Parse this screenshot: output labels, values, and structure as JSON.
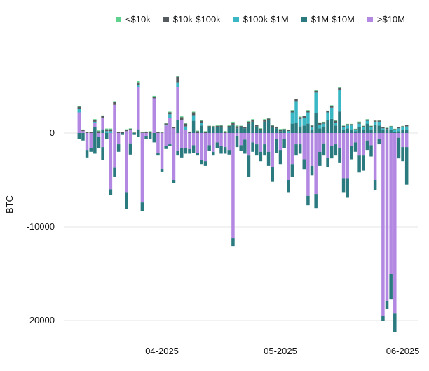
{
  "legend_title": "",
  "chart_data": {
    "type": "bar",
    "stacked": true,
    "title": "",
    "xlabel": "",
    "ylabel": "BTC",
    "ylim": [
      -20500,
      6500
    ],
    "y_ticks": [
      0,
      -10000,
      -20000
    ],
    "x_tick_labels": [
      {
        "label": "04-2025",
        "index": 21
      },
      {
        "label": "05-2025",
        "index": 51
      },
      {
        "label": "06-2025",
        "index": 82
      }
    ],
    "grid": true,
    "legend_position": "top-right",
    "series": [
      {
        "name": "<$10k",
        "color": "#5fd38d"
      },
      {
        "name": "$10k-$100k",
        "color": "#555b5e"
      },
      {
        "name": "$100k-$1M",
        "color": "#39b7c4"
      },
      {
        "name": "$1M-$10M",
        "color": "#2a7a7f"
      },
      {
        "name": ">$10M",
        "color": "#b388e2"
      }
    ],
    "positive": [
      [
        100,
        200,
        400,
        0,
        2200
      ],
      [
        60,
        120,
        0,
        0,
        200
      ],
      [
        40,
        80,
        0,
        0,
        0
      ],
      [
        40,
        100,
        0,
        0,
        0
      ],
      [
        80,
        200,
        100,
        600,
        500
      ],
      [
        80,
        200,
        0,
        0,
        0
      ],
      [
        80,
        200,
        0,
        400,
        1200
      ],
      [
        80,
        200,
        200,
        0,
        0
      ],
      [
        80,
        200,
        200,
        0,
        0
      ],
      [
        100,
        300,
        0,
        0,
        3000
      ],
      [
        40,
        100,
        0,
        0,
        0
      ],
      [
        40,
        80,
        0,
        0,
        0
      ],
      [
        60,
        140,
        0,
        0,
        200
      ],
      [
        60,
        140,
        0,
        0,
        300
      ],
      [
        20,
        40,
        0,
        0,
        0
      ],
      [
        120,
        300,
        200,
        400,
        4500
      ],
      [
        40,
        60,
        0,
        0,
        0
      ],
      [
        40,
        120,
        0,
        0,
        0
      ],
      [
        60,
        140,
        0,
        0,
        0
      ],
      [
        80,
        180,
        0,
        0,
        3700
      ],
      [
        40,
        100,
        0,
        0,
        0
      ],
      [
        40,
        60,
        0,
        0,
        0
      ],
      [
        40,
        120,
        100,
        0,
        800
      ],
      [
        80,
        200,
        400,
        0,
        1600
      ],
      [
        40,
        120,
        0,
        0,
        500
      ],
      [
        100,
        600,
        500,
        1400,
        3500
      ],
      [
        80,
        300,
        0,
        0,
        1400
      ],
      [
        80,
        300,
        400,
        0,
        300
      ],
      [
        40,
        120,
        0,
        0,
        0
      ],
      [
        80,
        300,
        600,
        1300,
        0
      ],
      [
        60,
        200,
        0,
        0,
        0
      ],
      [
        80,
        200,
        300,
        800,
        0
      ],
      [
        60,
        140,
        0,
        0,
        0
      ],
      [
        40,
        140,
        0,
        600,
        0
      ],
      [
        40,
        120,
        0,
        600,
        0
      ],
      [
        60,
        160,
        0,
        600,
        0
      ],
      [
        60,
        180,
        0,
        600,
        0
      ],
      [
        60,
        160,
        0,
        0,
        0
      ],
      [
        60,
        160,
        0,
        600,
        0
      ],
      [
        80,
        220,
        0,
        900,
        0
      ],
      [
        80,
        220,
        0,
        500,
        0
      ],
      [
        40,
        140,
        0,
        600,
        0
      ],
      [
        40,
        120,
        0,
        500,
        0
      ],
      [
        80,
        200,
        0,
        1000,
        0
      ],
      [
        80,
        200,
        0,
        1200,
        0
      ],
      [
        40,
        140,
        0,
        700,
        0
      ],
      [
        60,
        160,
        0,
        300,
        0
      ],
      [
        80,
        200,
        0,
        1200,
        0
      ],
      [
        40,
        140,
        0,
        1400,
        0
      ],
      [
        80,
        200,
        0,
        600,
        0
      ],
      [
        40,
        140,
        0,
        500,
        0
      ],
      [
        60,
        180,
        0,
        200,
        0
      ],
      [
        40,
        120,
        0,
        300,
        0
      ],
      [
        40,
        140,
        200,
        0,
        0
      ],
      [
        60,
        200,
        1200,
        1000,
        0
      ],
      [
        60,
        200,
        2300,
        1100,
        0
      ],
      [
        60,
        200,
        800,
        700,
        0
      ],
      [
        60,
        200,
        800,
        800,
        0
      ],
      [
        60,
        200,
        1200,
        1000,
        0
      ],
      [
        60,
        200,
        200,
        400,
        0
      ],
      [
        80,
        200,
        2200,
        2100,
        0
      ],
      [
        60,
        180,
        400,
        500,
        0
      ],
      [
        40,
        160,
        300,
        700,
        0
      ],
      [
        40,
        160,
        800,
        1400,
        0
      ],
      [
        60,
        200,
        1200,
        1500,
        0
      ],
      [
        60,
        200,
        300,
        800,
        0
      ],
      [
        60,
        200,
        2300,
        2300,
        0
      ],
      [
        40,
        160,
        200,
        400,
        0
      ],
      [
        40,
        140,
        300,
        500,
        0
      ],
      [
        40,
        140,
        400,
        400,
        0
      ],
      [
        40,
        120,
        100,
        200,
        0
      ],
      [
        60,
        160,
        400,
        600,
        0
      ],
      [
        40,
        140,
        200,
        400,
        0
      ],
      [
        40,
        140,
        300,
        1000,
        0
      ],
      [
        40,
        140,
        200,
        400,
        0
      ],
      [
        40,
        120,
        300,
        900,
        0
      ],
      [
        40,
        120,
        400,
        800,
        0
      ],
      [
        40,
        120,
        200,
        300,
        0
      ],
      [
        40,
        140,
        100,
        300,
        0
      ],
      [
        40,
        120,
        300,
        300,
        0
      ],
      [
        40,
        120,
        200,
        100,
        0
      ],
      [
        40,
        120,
        300,
        200,
        0
      ],
      [
        40,
        120,
        300,
        300,
        0
      ],
      [
        40,
        140,
        300,
        400,
        0
      ]
    ],
    "negative": [
      [
        0,
        0,
        0,
        -600,
        0
      ],
      [
        0,
        0,
        0,
        -800,
        0
      ],
      [
        0,
        0,
        0,
        -800,
        -1800
      ],
      [
        0,
        0,
        0,
        -400,
        -1600
      ],
      [
        0,
        0,
        0,
        -2200,
        0
      ],
      [
        0,
        0,
        0,
        -1200,
        -400
      ],
      [
        0,
        0,
        0,
        -1400,
        -1500
      ],
      [
        0,
        0,
        0,
        -600,
        0
      ],
      [
        0,
        0,
        0,
        -600,
        -6000
      ],
      [
        0,
        0,
        0,
        -1000,
        -3700
      ],
      [
        0,
        0,
        0,
        -800,
        -1200
      ],
      [
        0,
        0,
        0,
        -200,
        0
      ],
      [
        0,
        0,
        0,
        -1800,
        -6300
      ],
      [
        0,
        0,
        0,
        -1200,
        -1100
      ],
      [
        0,
        0,
        0,
        -200,
        0
      ],
      [
        0,
        0,
        0,
        -400,
        0
      ],
      [
        0,
        0,
        0,
        -900,
        -7400
      ],
      [
        0,
        0,
        0,
        -300,
        -300
      ],
      [
        0,
        0,
        0,
        -600,
        0
      ],
      [
        0,
        0,
        0,
        -1000,
        0
      ],
      [
        0,
        0,
        0,
        -300,
        -2100
      ],
      [
        0,
        0,
        0,
        -300,
        -3800
      ],
      [
        0,
        0,
        0,
        -300,
        -1400
      ],
      [
        0,
        0,
        0,
        -200,
        -1200
      ],
      [
        0,
        0,
        0,
        -300,
        -5000
      ],
      [
        0,
        0,
        0,
        -500,
        -1900
      ],
      [
        0,
        0,
        0,
        -1000,
        -1600
      ],
      [
        0,
        0,
        0,
        -600,
        -1600
      ],
      [
        0,
        0,
        0,
        -500,
        -1700
      ],
      [
        0,
        0,
        0,
        -800,
        -1300
      ],
      [
        0,
        0,
        0,
        -300,
        -2100
      ],
      [
        0,
        0,
        0,
        -400,
        -2900
      ],
      [
        0,
        0,
        0,
        -500,
        -3000
      ],
      [
        0,
        0,
        0,
        -600,
        -1300
      ],
      [
        0,
        0,
        0,
        -400,
        -2000
      ],
      [
        0,
        0,
        0,
        -600,
        -1000
      ],
      [
        0,
        0,
        0,
        -800,
        -1400
      ],
      [
        0,
        0,
        0,
        -700,
        -1500
      ],
      [
        0,
        0,
        0,
        -500,
        -1800
      ],
      [
        0,
        0,
        0,
        -900,
        -11200
      ],
      [
        0,
        0,
        0,
        -1200,
        -300
      ],
      [
        0,
        0,
        0,
        -600,
        -1300
      ],
      [
        0,
        0,
        0,
        -1500,
        -700
      ],
      [
        0,
        0,
        0,
        -2300,
        -2400
      ],
      [
        0,
        0,
        0,
        -1000,
        -1000
      ],
      [
        0,
        0,
        0,
        -1200,
        -1200
      ],
      [
        0,
        0,
        0,
        -1000,
        -2000
      ],
      [
        0,
        0,
        0,
        -1200,
        -1200
      ],
      [
        0,
        0,
        0,
        -1500,
        -2000
      ],
      [
        0,
        0,
        0,
        -1600,
        -3600
      ],
      [
        0,
        0,
        0,
        -1500,
        -600
      ],
      [
        0,
        0,
        0,
        -1500,
        -1800
      ],
      [
        0,
        0,
        0,
        -1000,
        -600
      ],
      [
        0,
        0,
        0,
        -1300,
        -5000
      ],
      [
        0,
        0,
        0,
        -1400,
        -3300
      ],
      [
        0,
        0,
        0,
        -1200,
        -1200
      ],
      [
        0,
        0,
        0,
        -1000,
        -1200
      ],
      [
        0,
        0,
        0,
        -1100,
        -2800
      ],
      [
        0,
        0,
        0,
        -1000,
        -6700
      ],
      [
        0,
        0,
        0,
        -1000,
        -3500
      ],
      [
        0,
        0,
        0,
        -1500,
        -6500
      ],
      [
        0,
        0,
        0,
        -1500,
        -2000
      ],
      [
        0,
        0,
        0,
        -1300,
        -1100
      ],
      [
        0,
        0,
        0,
        -1000,
        -2600
      ],
      [
        0,
        0,
        0,
        -1300,
        -1400
      ],
      [
        0,
        0,
        0,
        -1200,
        -1200
      ],
      [
        0,
        0,
        0,
        -1600,
        -1600
      ],
      [
        0,
        0,
        0,
        -1500,
        -4800
      ],
      [
        0,
        0,
        0,
        -2100,
        -4800
      ],
      [
        0,
        0,
        0,
        -1400,
        -1400
      ],
      [
        0,
        0,
        0,
        -1000,
        -1000
      ],
      [
        0,
        0,
        0,
        -1800,
        -2400
      ],
      [
        0,
        0,
        0,
        -1600,
        -2400
      ],
      [
        0,
        0,
        0,
        -1000,
        -800
      ],
      [
        0,
        0,
        0,
        -1200,
        -1300
      ],
      [
        0,
        0,
        0,
        -1100,
        -5000
      ],
      [
        0,
        0,
        0,
        -600,
        -600
      ],
      [
        0,
        0,
        0,
        -500,
        -19500
      ],
      [
        0,
        0,
        0,
        -900,
        -17900
      ],
      [
        0,
        0,
        0,
        -2700,
        -15000
      ],
      [
        0,
        0,
        0,
        -2000,
        -19200
      ],
      [
        0,
        0,
        0,
        -2200,
        -500
      ],
      [
        0,
        0,
        0,
        -1500,
        -1500
      ],
      [
        0,
        0,
        0,
        -4000,
        -1500
      ]
    ]
  }
}
